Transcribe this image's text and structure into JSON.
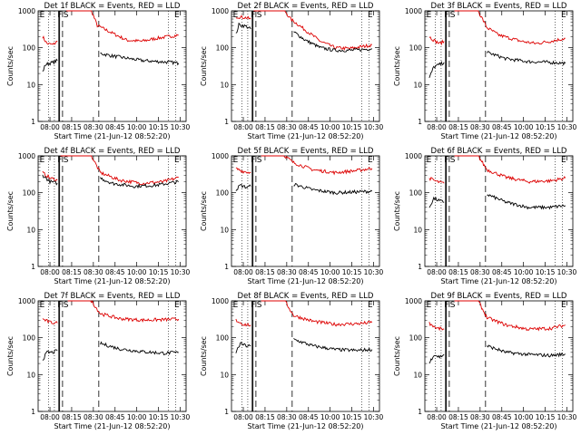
{
  "common": {
    "ylabel": "Counts/sec",
    "xlabel": "Start Time (21-Jun-12 08:52:20)",
    "y_ticks": [
      "1",
      "10",
      "100",
      "1000"
    ],
    "x_ticks": [
      "08:00",
      "08:15",
      "08:30",
      "08:45",
      "10:00",
      "10:15",
      "10:30"
    ],
    "series": [
      {
        "name": "Events",
        "color": "#000000"
      },
      {
        "name": "LLD",
        "color": "#dd0000"
      }
    ],
    "markers": [
      "E",
      "F",
      "S",
      "E"
    ]
  },
  "chart_data": [
    {
      "type": "line",
      "title": "Det 1f BLACK = Events, RED = LLD",
      "ylim": [
        1,
        1000
      ],
      "yscale": "log",
      "segments": {
        "Events": [
          [
            [
              0.03,
              22
            ],
            [
              0.05,
              35
            ],
            [
              0.1,
              40
            ],
            [
              0.13,
              45
            ]
          ],
          [
            [
              0.42,
              70
            ],
            [
              0.5,
              60
            ],
            [
              0.7,
              45
            ],
            [
              0.9,
              40
            ],
            [
              0.95,
              38
            ]
          ]
        ],
        "LLD": [
          [
            [
              0.03,
              200
            ],
            [
              0.06,
              130
            ],
            [
              0.1,
              120
            ],
            [
              0.13,
              150
            ]
          ],
          [
            [
              0.19,
              1000
            ],
            [
              0.3,
              1000
            ],
            [
              0.36,
              1000
            ],
            [
              0.4,
              400
            ],
            [
              0.5,
              250
            ],
            [
              0.6,
              160
            ],
            [
              0.7,
              150
            ],
            [
              0.8,
              180
            ],
            [
              0.95,
              220
            ]
          ]
        ]
      }
    },
    {
      "type": "line",
      "title": "Det 2f BLACK = Events, RED = LLD",
      "ylim": [
        1,
        1000
      ],
      "yscale": "log",
      "segments": {
        "Events": [
          [
            [
              0.03,
              230
            ],
            [
              0.05,
              420
            ],
            [
              0.1,
              380
            ],
            [
              0.13,
              320
            ]
          ],
          [
            [
              0.42,
              270
            ],
            [
              0.5,
              160
            ],
            [
              0.6,
              100
            ],
            [
              0.7,
              85
            ],
            [
              0.8,
              85
            ],
            [
              0.9,
              90
            ],
            [
              0.95,
              95
            ]
          ]
        ],
        "LLD": [
          [
            [
              0.03,
              700
            ],
            [
              0.1,
              650
            ],
            [
              0.13,
              600
            ]
          ],
          [
            [
              0.15,
              1000
            ],
            [
              0.36,
              1000
            ],
            [
              0.4,
              600
            ],
            [
              0.5,
              300
            ],
            [
              0.6,
              150
            ],
            [
              0.7,
              100
            ],
            [
              0.8,
              95
            ],
            [
              0.9,
              110
            ],
            [
              0.95,
              120
            ]
          ]
        ]
      }
    },
    {
      "type": "line",
      "title": "Det 3f BLACK = Events, RED = LLD",
      "ylim": [
        1,
        1000
      ],
      "yscale": "log",
      "segments": {
        "Events": [
          [
            [
              0.03,
              15
            ],
            [
              0.06,
              30
            ],
            [
              0.1,
              35
            ],
            [
              0.13,
              40
            ]
          ],
          [
            [
              0.42,
              75
            ],
            [
              0.55,
              50
            ],
            [
              0.7,
              42
            ],
            [
              0.85,
              40
            ],
            [
              0.95,
              38
            ]
          ]
        ],
        "LLD": [
          [
            [
              0.03,
              200
            ],
            [
              0.07,
              150
            ],
            [
              0.1,
              130
            ],
            [
              0.13,
              150
            ]
          ],
          [
            [
              0.2,
              1000
            ],
            [
              0.36,
              1000
            ],
            [
              0.42,
              350
            ],
            [
              0.5,
              220
            ],
            [
              0.65,
              150
            ],
            [
              0.75,
              130
            ],
            [
              0.85,
              150
            ],
            [
              0.95,
              180
            ]
          ]
        ]
      }
    },
    {
      "type": "line",
      "title": "Det 4f BLACK = Events, RED = LLD",
      "ylim": [
        1,
        1000
      ],
      "yscale": "log",
      "segments": {
        "Events": [
          [
            [
              0.03,
              300
            ],
            [
              0.08,
              200
            ],
            [
              0.13,
              180
            ]
          ],
          [
            [
              0.42,
              250
            ],
            [
              0.5,
              180
            ],
            [
              0.65,
              150
            ],
            [
              0.8,
              160
            ],
            [
              0.95,
              200
            ]
          ]
        ],
        "LLD": [
          [
            [
              0.03,
              350
            ],
            [
              0.08,
              250
            ],
            [
              0.13,
              220
            ]
          ],
          [
            [
              0.15,
              1000
            ],
            [
              0.36,
              1000
            ],
            [
              0.42,
              350
            ],
            [
              0.55,
              220
            ],
            [
              0.7,
              180
            ],
            [
              0.85,
              200
            ],
            [
              0.95,
              260
            ]
          ]
        ]
      }
    },
    {
      "type": "line",
      "title": "Det 5f BLACK = Events, RED = LLD",
      "ylim": [
        1,
        1000
      ],
      "yscale": "log",
      "segments": {
        "Events": [
          [
            [
              0.03,
              120
            ],
            [
              0.06,
              160
            ],
            [
              0.1,
              140
            ],
            [
              0.13,
              150
            ]
          ],
          [
            [
              0.42,
              170
            ],
            [
              0.55,
              120
            ],
            [
              0.7,
              100
            ],
            [
              0.85,
              105
            ],
            [
              0.95,
              110
            ]
          ]
        ],
        "LLD": [
          [
            [
              0.03,
              450
            ],
            [
              0.08,
              380
            ],
            [
              0.13,
              350
            ]
          ],
          [
            [
              0.2,
              1000
            ],
            [
              0.36,
              1000
            ],
            [
              0.42,
              650
            ],
            [
              0.55,
              420
            ],
            [
              0.7,
              350
            ],
            [
              0.85,
              400
            ],
            [
              0.95,
              460
            ]
          ]
        ]
      }
    },
    {
      "type": "line",
      "title": "Det 6f BLACK = Events, RED = LLD",
      "ylim": [
        1,
        1000
      ],
      "yscale": "log",
      "segments": {
        "Events": [
          [
            [
              0.03,
              40
            ],
            [
              0.06,
              70
            ],
            [
              0.1,
              60
            ],
            [
              0.13,
              55
            ]
          ],
          [
            [
              0.42,
              90
            ],
            [
              0.55,
              55
            ],
            [
              0.7,
              40
            ],
            [
              0.85,
              40
            ],
            [
              0.95,
              45
            ]
          ]
        ],
        "LLD": [
          [
            [
              0.03,
              250
            ],
            [
              0.08,
              200
            ],
            [
              0.13,
              180
            ]
          ],
          [
            [
              0.2,
              1000
            ],
            [
              0.36,
              1000
            ],
            [
              0.42,
              420
            ],
            [
              0.55,
              260
            ],
            [
              0.7,
              200
            ],
            [
              0.85,
              210
            ],
            [
              0.95,
              250
            ]
          ]
        ]
      }
    },
    {
      "type": "line",
      "title": "Det 7f BLACK = Events, RED = LLD",
      "ylim": [
        1,
        1000
      ],
      "yscale": "log",
      "segments": {
        "Events": [
          [
            [
              0.03,
              25
            ],
            [
              0.06,
              40
            ],
            [
              0.1,
              40
            ],
            [
              0.13,
              45
            ]
          ],
          [
            [
              0.42,
              70
            ],
            [
              0.55,
              50
            ],
            [
              0.7,
              42
            ],
            [
              0.85,
              38
            ],
            [
              0.95,
              40
            ]
          ]
        ],
        "LLD": [
          [
            [
              0.03,
              320
            ],
            [
              0.08,
              260
            ],
            [
              0.13,
              250
            ]
          ],
          [
            [
              0.2,
              1000
            ],
            [
              0.36,
              1000
            ],
            [
              0.42,
              450
            ],
            [
              0.55,
              330
            ],
            [
              0.7,
              300
            ],
            [
              0.85,
              310
            ],
            [
              0.95,
              320
            ]
          ]
        ]
      }
    },
    {
      "type": "line",
      "title": "Det 8f BLACK = Events, RED = LLD",
      "ylim": [
        1,
        1000
      ],
      "yscale": "log",
      "segments": {
        "Events": [
          [
            [
              0.03,
              40
            ],
            [
              0.06,
              70
            ],
            [
              0.1,
              60
            ],
            [
              0.13,
              60
            ]
          ],
          [
            [
              0.42,
              90
            ],
            [
              0.55,
              60
            ],
            [
              0.7,
              48
            ],
            [
              0.85,
              45
            ],
            [
              0.95,
              48
            ]
          ]
        ],
        "LLD": [
          [
            [
              0.03,
              300
            ],
            [
              0.08,
              230
            ],
            [
              0.13,
              220
            ]
          ],
          [
            [
              0.2,
              1000
            ],
            [
              0.36,
              1000
            ],
            [
              0.42,
              400
            ],
            [
              0.55,
              280
            ],
            [
              0.7,
              230
            ],
            [
              0.85,
              240
            ],
            [
              0.95,
              260
            ]
          ]
        ]
      }
    },
    {
      "type": "line",
      "title": "Det 9f BLACK = Events, RED = LLD",
      "ylim": [
        1,
        1000
      ],
      "yscale": "log",
      "segments": {
        "Events": [
          [
            [
              0.03,
              20
            ],
            [
              0.06,
              35
            ],
            [
              0.1,
              30
            ],
            [
              0.13,
              35
            ]
          ],
          [
            [
              0.42,
              60
            ],
            [
              0.55,
              40
            ],
            [
              0.7,
              35
            ],
            [
              0.85,
              33
            ],
            [
              0.95,
              36
            ]
          ]
        ],
        "LLD": [
          [
            [
              0.03,
              250
            ],
            [
              0.08,
              180
            ],
            [
              0.13,
              170
            ]
          ],
          [
            [
              0.2,
              1000
            ],
            [
              0.36,
              1000
            ],
            [
              0.42,
              350
            ],
            [
              0.55,
              220
            ],
            [
              0.7,
              170
            ],
            [
              0.85,
              180
            ],
            [
              0.95,
              220
            ]
          ]
        ]
      }
    }
  ]
}
